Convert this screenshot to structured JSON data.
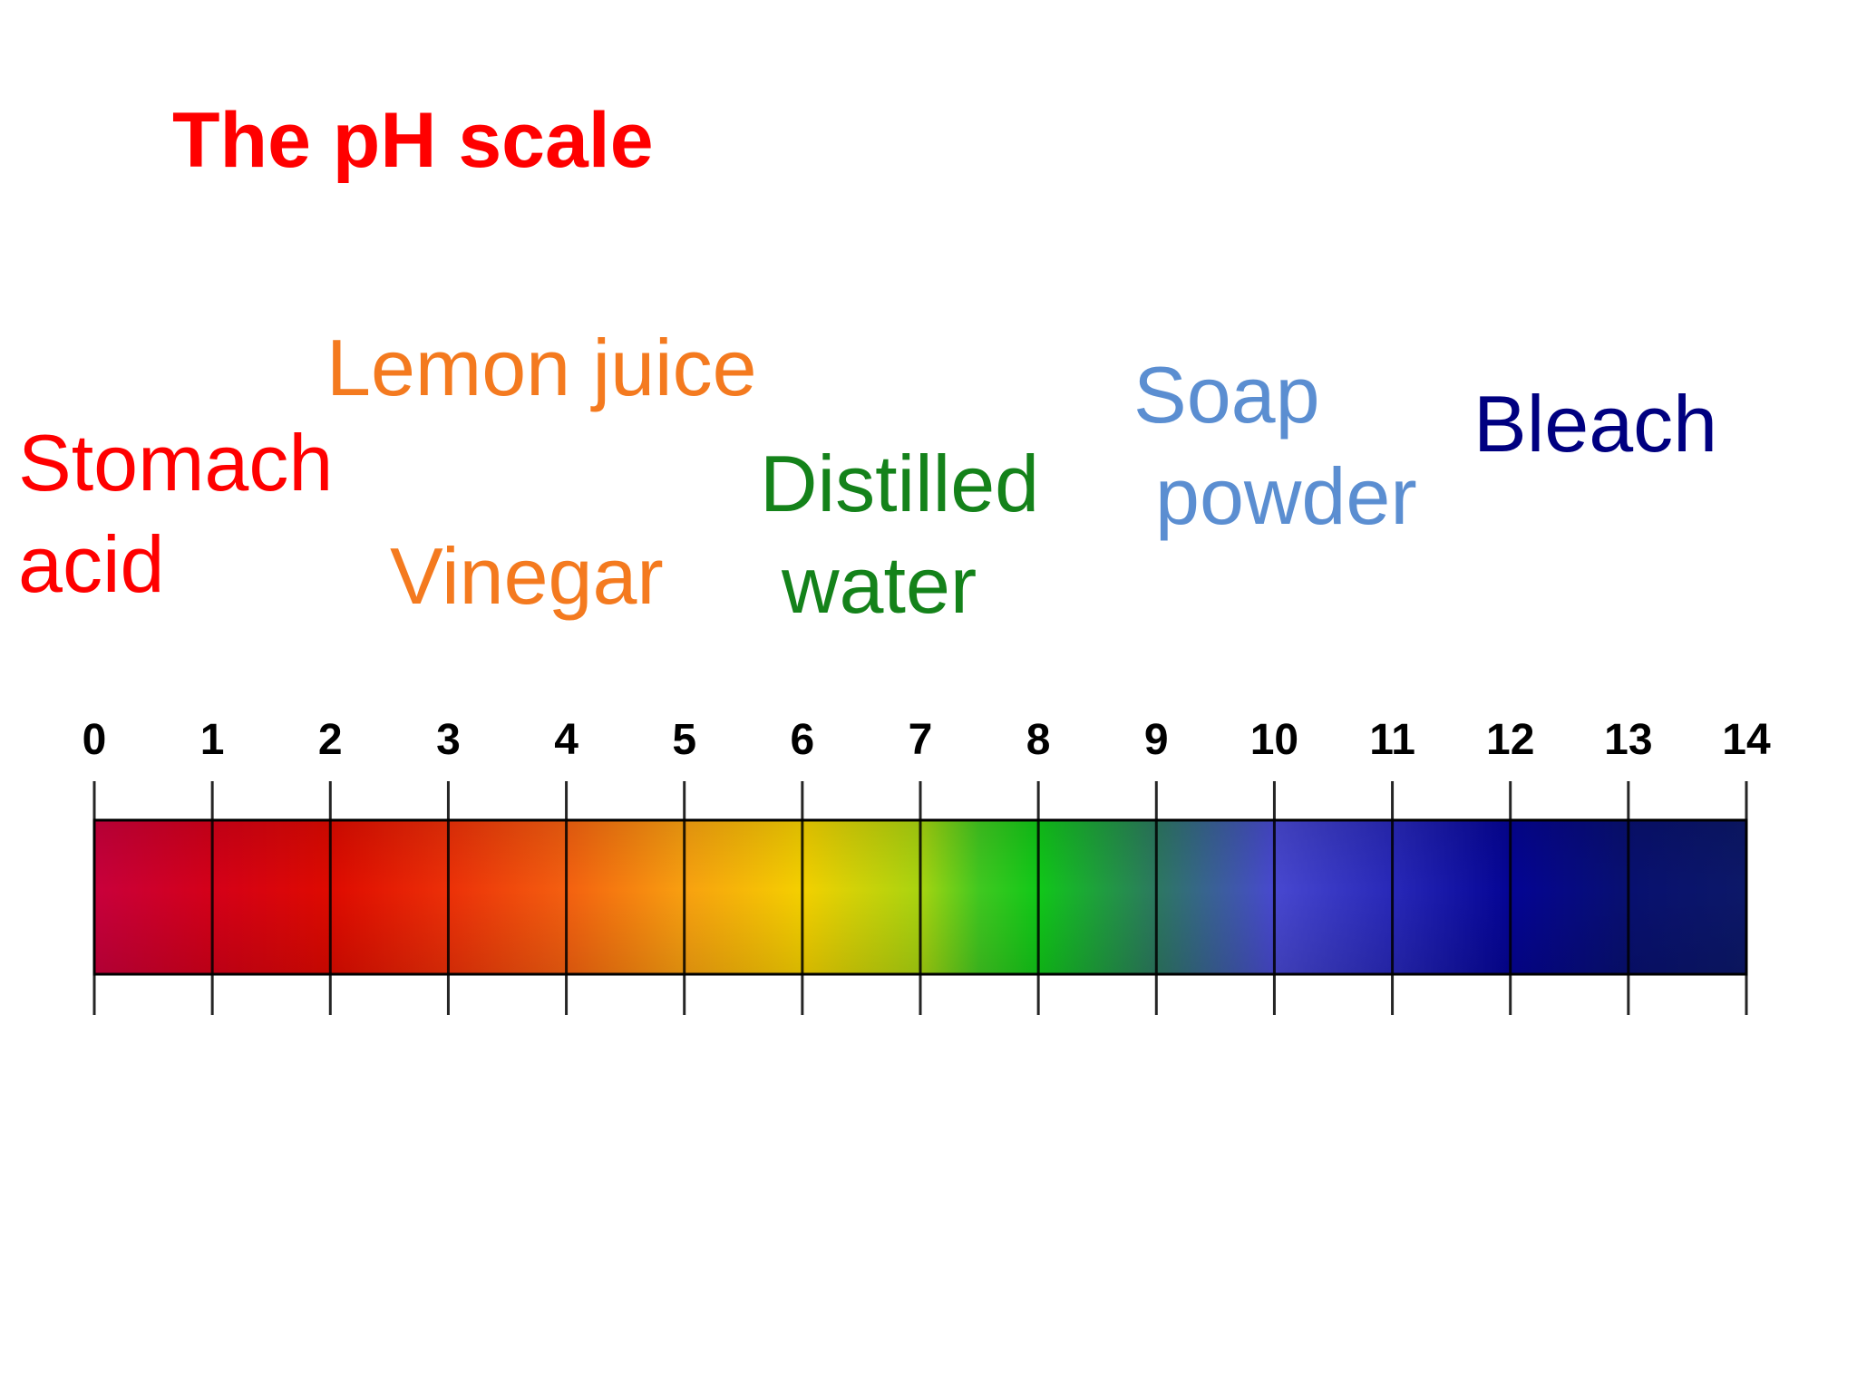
{
  "title": "The pH scale",
  "colors": {
    "title": "#ff0000",
    "stomach": "#ff0000",
    "lemon": "#f47a1f",
    "vinegar": "#f47a1f",
    "water": "#14821a",
    "soap": "#5b8ed1",
    "bleach": "#000080"
  },
  "labels": {
    "stomach_acid": [
      "Stomach",
      "acid"
    ],
    "lemon_juice": "Lemon juice",
    "vinegar": "Vinegar",
    "distilled_water": [
      "Distilled",
      "water"
    ],
    "soap_powder": [
      "Soap",
      "powder"
    ],
    "bleach": "Bleach"
  },
  "scale": {
    "min": 0,
    "max": 14,
    "ticks": [
      "0",
      "1",
      "2",
      "3",
      "4",
      "5",
      "6",
      "7",
      "8",
      "9",
      "10",
      "11",
      "12",
      "13",
      "14"
    ],
    "gradient": [
      {
        "ph": 0,
        "color": "#c8003c"
      },
      {
        "ph": 1,
        "color": "#d40018"
      },
      {
        "ph": 2,
        "color": "#de0a00"
      },
      {
        "ph": 3,
        "color": "#ec3008"
      },
      {
        "ph": 4,
        "color": "#f46010"
      },
      {
        "ph": 5,
        "color": "#f8a010"
      },
      {
        "ph": 6,
        "color": "#f4d000"
      },
      {
        "ph": 7,
        "color": "#a8d410"
      },
      {
        "ph": 7.5,
        "color": "#40c820"
      },
      {
        "ph": 8,
        "color": "#10c818"
      },
      {
        "ph": 9,
        "color": "#2c7860"
      },
      {
        "ph": 10,
        "color": "#4848d0"
      },
      {
        "ph": 11,
        "color": "#2828b8"
      },
      {
        "ph": 12,
        "color": "#040494"
      },
      {
        "ph": 13,
        "color": "#081070"
      },
      {
        "ph": 14,
        "color": "#0c1868"
      }
    ]
  }
}
